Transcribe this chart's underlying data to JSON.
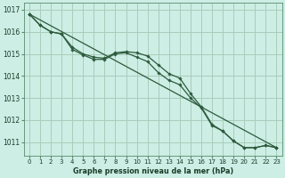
{
  "title": "Graphe pression niveau de la mer (hPa)",
  "bg_color": "#cceee4",
  "grid_color": "#aaccbb",
  "line_color": "#2d5a3d",
  "ylim": [
    1010.4,
    1017.3
  ],
  "xlim": [
    -0.5,
    23.5
  ],
  "yticks": [
    1011,
    1012,
    1013,
    1014,
    1015,
    1016,
    1017
  ],
  "xticks": [
    0,
    1,
    2,
    3,
    4,
    5,
    6,
    7,
    8,
    9,
    10,
    11,
    12,
    13,
    14,
    15,
    16,
    17,
    18,
    19,
    20,
    21,
    22,
    23
  ],
  "series1": [
    1016.8,
    1016.3,
    1016.0,
    1015.9,
    1015.3,
    1015.0,
    1014.85,
    1014.8,
    1015.05,
    1015.1,
    1015.05,
    1014.9,
    1014.5,
    1014.1,
    1013.9,
    1013.2,
    1012.6,
    1011.8,
    1011.5,
    1011.05,
    1010.75,
    1010.75,
    1010.85,
    1010.75
  ],
  "series2": [
    1016.8,
    1016.3,
    1016.0,
    1015.9,
    1015.2,
    1014.95,
    1014.75,
    1014.75,
    1015.0,
    1015.05,
    1014.85,
    1014.65,
    1014.15,
    1013.8,
    1013.6,
    1013.0,
    1012.55,
    1011.75,
    1011.5,
    1011.05,
    1010.75,
    1010.75,
    1010.85,
    1010.75
  ],
  "series3_x": [
    0,
    23
  ],
  "series3_y": [
    1016.8,
    1010.75
  ],
  "label_fontsize": 5.0,
  "title_fontsize": 5.8
}
